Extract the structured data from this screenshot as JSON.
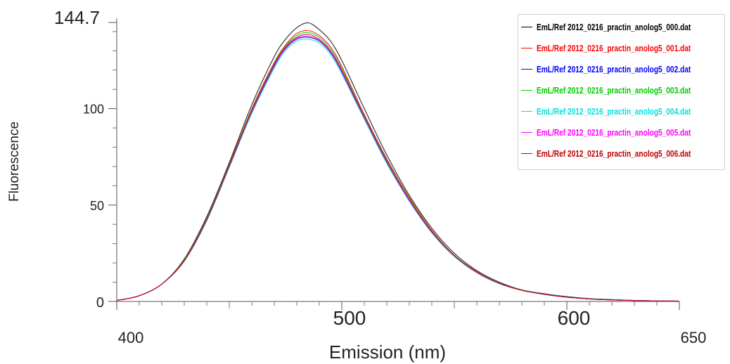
{
  "chart_data": {
    "type": "line",
    "title": "",
    "xlabel": "Emission (nm)",
    "ylabel": "Fluorescence",
    "xlim": [
      400,
      650
    ],
    "ylim": [
      0,
      144.7
    ],
    "x_ticks": [
      "400",
      "500",
      "600",
      "650"
    ],
    "y_ticks": [
      "0",
      "50",
      "100",
      "144.7"
    ],
    "legend_position": "top-right",
    "x": [
      400,
      410,
      420,
      430,
      440,
      450,
      460,
      470,
      475,
      480,
      485,
      490,
      495,
      500,
      510,
      520,
      530,
      540,
      550,
      560,
      570,
      580,
      590,
      600,
      610,
      620,
      630,
      640,
      650
    ],
    "series": [
      {
        "name": "EmL/Ref 2012_0216_practin_anolog5_000.dat",
        "color": "#000000",
        "values": [
          0.5,
          3,
          9,
          22,
          44,
          72,
          102,
          127,
          136,
          142,
          144.5,
          141,
          135,
          125,
          100,
          76,
          55,
          38,
          25,
          16,
          10,
          6,
          4,
          2.5,
          1.5,
          1,
          0.5,
          0.3,
          0.2
        ]
      },
      {
        "name": "EmL/Ref 2012_0216_practin_anolog5_001.dat",
        "color": "#ff0000",
        "values": [
          0.5,
          3,
          9,
          21.5,
          43,
          71,
          100,
          124,
          133,
          139,
          140.5,
          138,
          132,
          122,
          97,
          74,
          54,
          37,
          24,
          15.5,
          9.5,
          6,
          3.8,
          2.3,
          1.4,
          0.9,
          0.5,
          0.3,
          0.2
        ]
      },
      {
        "name": "EmL/Ref 2012_0216_practin_anolog5_002.dat",
        "color": "#0000ff",
        "values": [
          0.5,
          3,
          9,
          21,
          42,
          70,
          98,
          122,
          131,
          136,
          137,
          135,
          129,
          119,
          95,
          72,
          52,
          36,
          23.5,
          15,
          9.3,
          5.8,
          3.7,
          2.2,
          1.3,
          0.8,
          0.5,
          0.3,
          0.2
        ]
      },
      {
        "name": "EmL/Ref 2012_0216_practin_anolog5_003.dat",
        "color": "#00cc00",
        "values": [
          0.5,
          3,
          9,
          21.5,
          43,
          71,
          99.5,
          123.5,
          132.5,
          138,
          139.5,
          137,
          131,
          121,
          96.5,
          73.5,
          53.5,
          36.5,
          24,
          15.3,
          9.5,
          5.9,
          3.8,
          2.3,
          1.4,
          0.9,
          0.5,
          0.3,
          0.2
        ]
      },
      {
        "name": "EmL/Ref 2012_0216_practin_anolog5_004.dat",
        "color": "#00e0e0",
        "values": [
          0.5,
          3,
          9,
          21,
          42,
          69.5,
          97.5,
          121,
          130,
          135,
          136,
          134,
          128,
          118,
          94.5,
          71.5,
          52,
          35.5,
          23.3,
          14.9,
          9.2,
          5.7,
          3.6,
          2.2,
          1.3,
          0.8,
          0.5,
          0.3,
          0.2
        ]
      },
      {
        "name": "EmL/Ref 2012_0216_practin_anolog5_005.dat",
        "color": "#ff00ff",
        "values": [
          0.5,
          3,
          9,
          21,
          42.5,
          70,
          98.5,
          122.5,
          131.5,
          136.5,
          137.5,
          135.5,
          129.5,
          119.5,
          95.5,
          72.5,
          52.5,
          36,
          23.7,
          15.1,
          9.4,
          5.8,
          3.7,
          2.2,
          1.3,
          0.8,
          0.5,
          0.3,
          0.2
        ]
      },
      {
        "name": "EmL/Ref 2012_0216_practin_anolog5_006.dat",
        "color": "#c00000",
        "values": [
          0.5,
          3,
          9,
          21,
          42.5,
          70.5,
          99,
          123,
          132,
          137,
          138.5,
          136,
          130,
          120,
          96,
          73,
          53,
          36.3,
          23.8,
          15.2,
          9.4,
          5.8,
          3.7,
          2.2,
          1.3,
          0.8,
          0.5,
          0.3,
          0.2
        ]
      }
    ]
  }
}
